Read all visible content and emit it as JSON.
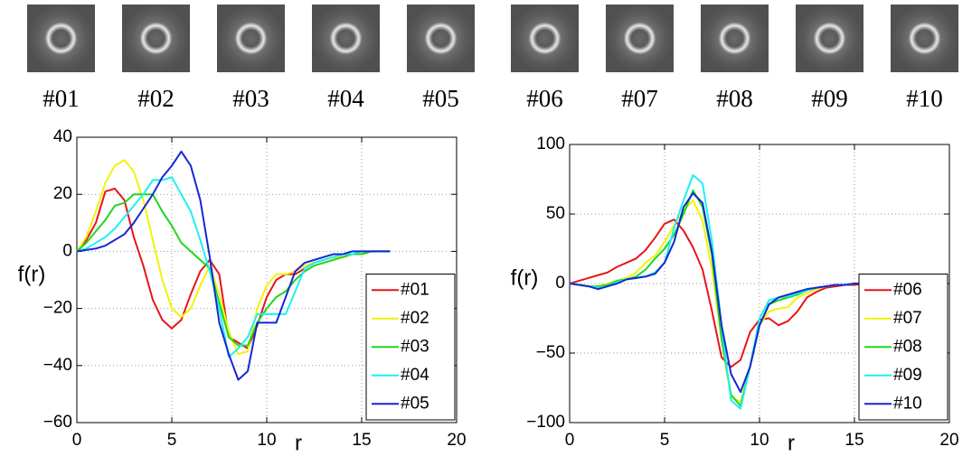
{
  "thumbnails": [
    "#01",
    "#02",
    "#03",
    "#04",
    "#05",
    "#06",
    "#07",
    "#08",
    "#09",
    "#10"
  ],
  "chart_data": [
    {
      "type": "line",
      "ylabel": "f(r)",
      "xlabel": "r",
      "x": [
        0,
        0.5,
        1,
        1.5,
        2,
        2.5,
        3,
        3.5,
        4,
        4.5,
        5,
        5.5,
        6,
        6.5,
        7,
        7.5,
        8,
        8.5,
        9,
        9.5,
        10,
        10.5,
        11,
        11.5,
        12,
        12.5,
        13,
        13.5,
        14,
        14.5,
        15,
        15.5,
        16,
        16.5
      ],
      "xlim": [
        0,
        20
      ],
      "xticks": [
        0,
        5,
        10,
        15,
        20
      ],
      "ylim": [
        -60,
        40
      ],
      "yticks": [
        {
          "value": -60,
          "label": "−60"
        },
        {
          "value": -40,
          "label": "−40"
        },
        {
          "value": -20,
          "label": "−20"
        },
        0,
        20,
        40
      ],
      "grid": true,
      "legend": "lower right",
      "series": [
        {
          "name": "#01",
          "color": "#e8141a",
          "values": [
            0,
            4,
            10,
            21,
            22,
            18,
            5,
            -5,
            -17,
            -24,
            -27,
            -24,
            -15,
            -7,
            -3,
            -8,
            -30,
            -32,
            -34,
            -26,
            -16,
            -10,
            -8,
            -8,
            -6,
            -4,
            -3,
            -2,
            -2,
            -1,
            -1,
            0,
            0,
            0
          ]
        },
        {
          "name": "#02",
          "color": "#f2f20a",
          "values": [
            0,
            5,
            14,
            24,
            30,
            32,
            28,
            18,
            4,
            -10,
            -20,
            -23,
            -20,
            -12,
            -5,
            -15,
            -28,
            -36,
            -35,
            -20,
            -12,
            -8,
            -8,
            -7,
            -5,
            -4,
            -3,
            -2,
            -2,
            -1,
            -1,
            0,
            0,
            0
          ]
        },
        {
          "name": "#03",
          "color": "#1fd61f",
          "values": [
            0,
            3,
            7,
            11,
            16,
            17,
            20,
            20,
            20,
            14,
            9,
            3,
            0,
            -3,
            -6,
            -18,
            -30,
            -33,
            -33,
            -25,
            -20,
            -16,
            -14,
            -10,
            -7,
            -5,
            -4,
            -3,
            -2,
            -1,
            -1,
            0,
            0,
            0
          ]
        },
        {
          "name": "#04",
          "color": "#1ff0f0",
          "values": [
            0,
            1,
            3,
            5,
            8,
            12,
            16,
            20,
            25,
            25,
            26,
            20,
            14,
            4,
            -7,
            -20,
            -37,
            -34,
            -30,
            -22,
            -22,
            -22,
            -22,
            -14,
            -6,
            -4,
            -3,
            -2,
            -1,
            -1,
            0,
            0,
            0,
            0
          ]
        },
        {
          "name": "#05",
          "color": "#1428d2",
          "values": [
            0,
            0.5,
            1,
            2,
            4,
            6,
            10,
            15,
            20,
            26,
            30,
            35,
            30,
            18,
            -2,
            -25,
            -36,
            -45,
            -42,
            -25,
            -25,
            -25,
            -16,
            -7,
            -4,
            -3,
            -2,
            -1,
            -1,
            0,
            0,
            0,
            0,
            0
          ]
        }
      ]
    },
    {
      "type": "line",
      "ylabel": "f(r)",
      "xlabel": "r",
      "x": [
        0,
        0.5,
        1,
        1.5,
        2,
        2.5,
        3,
        3.5,
        4,
        4.5,
        5,
        5.5,
        6,
        6.5,
        7,
        7.5,
        8,
        8.5,
        9,
        9.5,
        10,
        10.5,
        11,
        11.5,
        12,
        12.5,
        13,
        13.5,
        14,
        14.5,
        15,
        15.5,
        16,
        16.5
      ],
      "xlim": [
        0,
        20
      ],
      "xticks": [
        0,
        5,
        10,
        15,
        20
      ],
      "ylim": [
        -100,
        100
      ],
      "yticks": [
        {
          "value": -100,
          "label": "−100"
        },
        {
          "value": -50,
          "label": "−50"
        },
        0,
        50,
        100
      ],
      "grid": true,
      "legend": "lower right",
      "series": [
        {
          "name": "#06",
          "color": "#e8141a",
          "values": [
            0,
            2,
            4,
            6,
            8,
            12,
            15,
            18,
            24,
            33,
            43,
            46,
            38,
            26,
            10,
            -20,
            -53,
            -60,
            -55,
            -35,
            -26,
            -25,
            -30,
            -27,
            -20,
            -10,
            -6,
            -3,
            -2,
            -1,
            -1,
            0,
            0,
            0
          ]
        },
        {
          "name": "#07",
          "color": "#f2f20a",
          "values": [
            0,
            -1,
            -2,
            -2,
            0,
            2,
            4,
            8,
            15,
            20,
            30,
            42,
            52,
            60,
            45,
            10,
            -40,
            -82,
            -85,
            -60,
            -30,
            -20,
            -18,
            -17,
            -10,
            -7,
            -4,
            -2,
            -1,
            -1,
            0,
            0,
            0,
            0
          ]
        },
        {
          "name": "#08",
          "color": "#1fd61f",
          "values": [
            0,
            -1,
            -2,
            -2,
            -1,
            2,
            3,
            5,
            10,
            18,
            25,
            35,
            50,
            67,
            55,
            20,
            -40,
            -80,
            -88,
            -60,
            -30,
            -15,
            -12,
            -10,
            -8,
            -5,
            -3,
            -2,
            -1,
            -1,
            0,
            0,
            0,
            0
          ]
        },
        {
          "name": "#09",
          "color": "#1ff0f0",
          "values": [
            0,
            -1,
            -2,
            -3,
            -2,
            1,
            3,
            4,
            5,
            8,
            15,
            40,
            60,
            78,
            72,
            30,
            -30,
            -84,
            -90,
            -60,
            -25,
            -12,
            -10,
            -9,
            -7,
            -5,
            -3,
            -2,
            -1,
            -1,
            0,
            0,
            0,
            0
          ]
        },
        {
          "name": "#10",
          "color": "#1428d2",
          "values": [
            0,
            -1,
            -2,
            -4,
            -2,
            0,
            3,
            4,
            5,
            7,
            15,
            30,
            55,
            65,
            58,
            22,
            -30,
            -65,
            -78,
            -60,
            -30,
            -15,
            -10,
            -8,
            -6,
            -4,
            -3,
            -2,
            -1,
            -1,
            0,
            0,
            0,
            0
          ]
        }
      ]
    }
  ]
}
